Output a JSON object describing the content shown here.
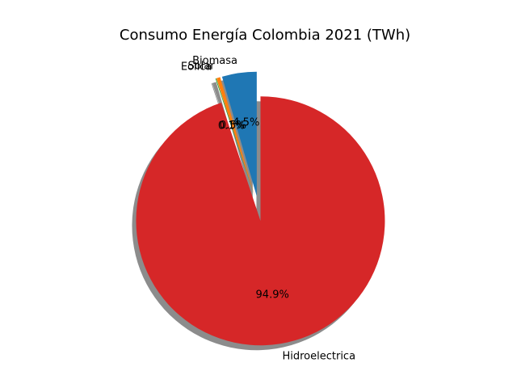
{
  "chart_data": {
    "type": "pie",
    "title": "Consumo Energía Colombia 2021 (TWh)",
    "labels": [
      "Biomasa",
      "Solar",
      "Eolica",
      "Hidroelectrica"
    ],
    "values": [
      4.5,
      0.5,
      0.1,
      94.9
    ],
    "percent_labels": [
      "4.5%",
      "0.5%",
      "0.1%",
      "94.9%"
    ],
    "colors": [
      "#1f77b4",
      "#ff7f0e",
      "#2ca02c",
      "#d62728"
    ],
    "explode": [
      0.1,
      0.1,
      0.1,
      0.1
    ],
    "shadow": true,
    "start_angle": 90,
    "counterclock": true
  }
}
